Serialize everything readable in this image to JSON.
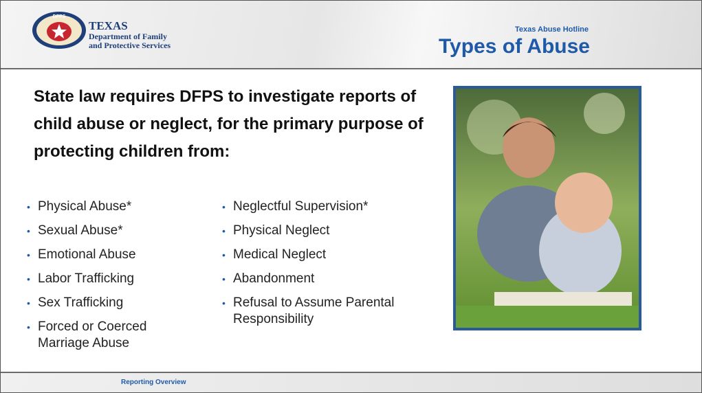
{
  "header": {
    "org": {
      "name": "TEXAS",
      "line1": "Department of Family",
      "line2": "and Protective Services",
      "badge": "DFPS"
    },
    "subtitle": "Texas Abuse Hotline",
    "title": "Types of Abuse"
  },
  "body": {
    "intro": "State law requires DFPS to investigate reports of child abuse or neglect, for the primary purpose of protecting children from:",
    "left_list": [
      "Physical Abuse*",
      "Sexual Abuse*",
      "Emotional Abuse",
      "Labor Trafficking",
      "Sex Trafficking",
      "Forced or Coerced Marriage Abuse"
    ],
    "right_list": [
      "Neglectful Supervision*",
      "Physical Neglect",
      "Medical Neglect",
      "Abandonment",
      "Refusal to Assume Parental Responsibility"
    ]
  },
  "footer": {
    "text": "Reporting Overview"
  }
}
